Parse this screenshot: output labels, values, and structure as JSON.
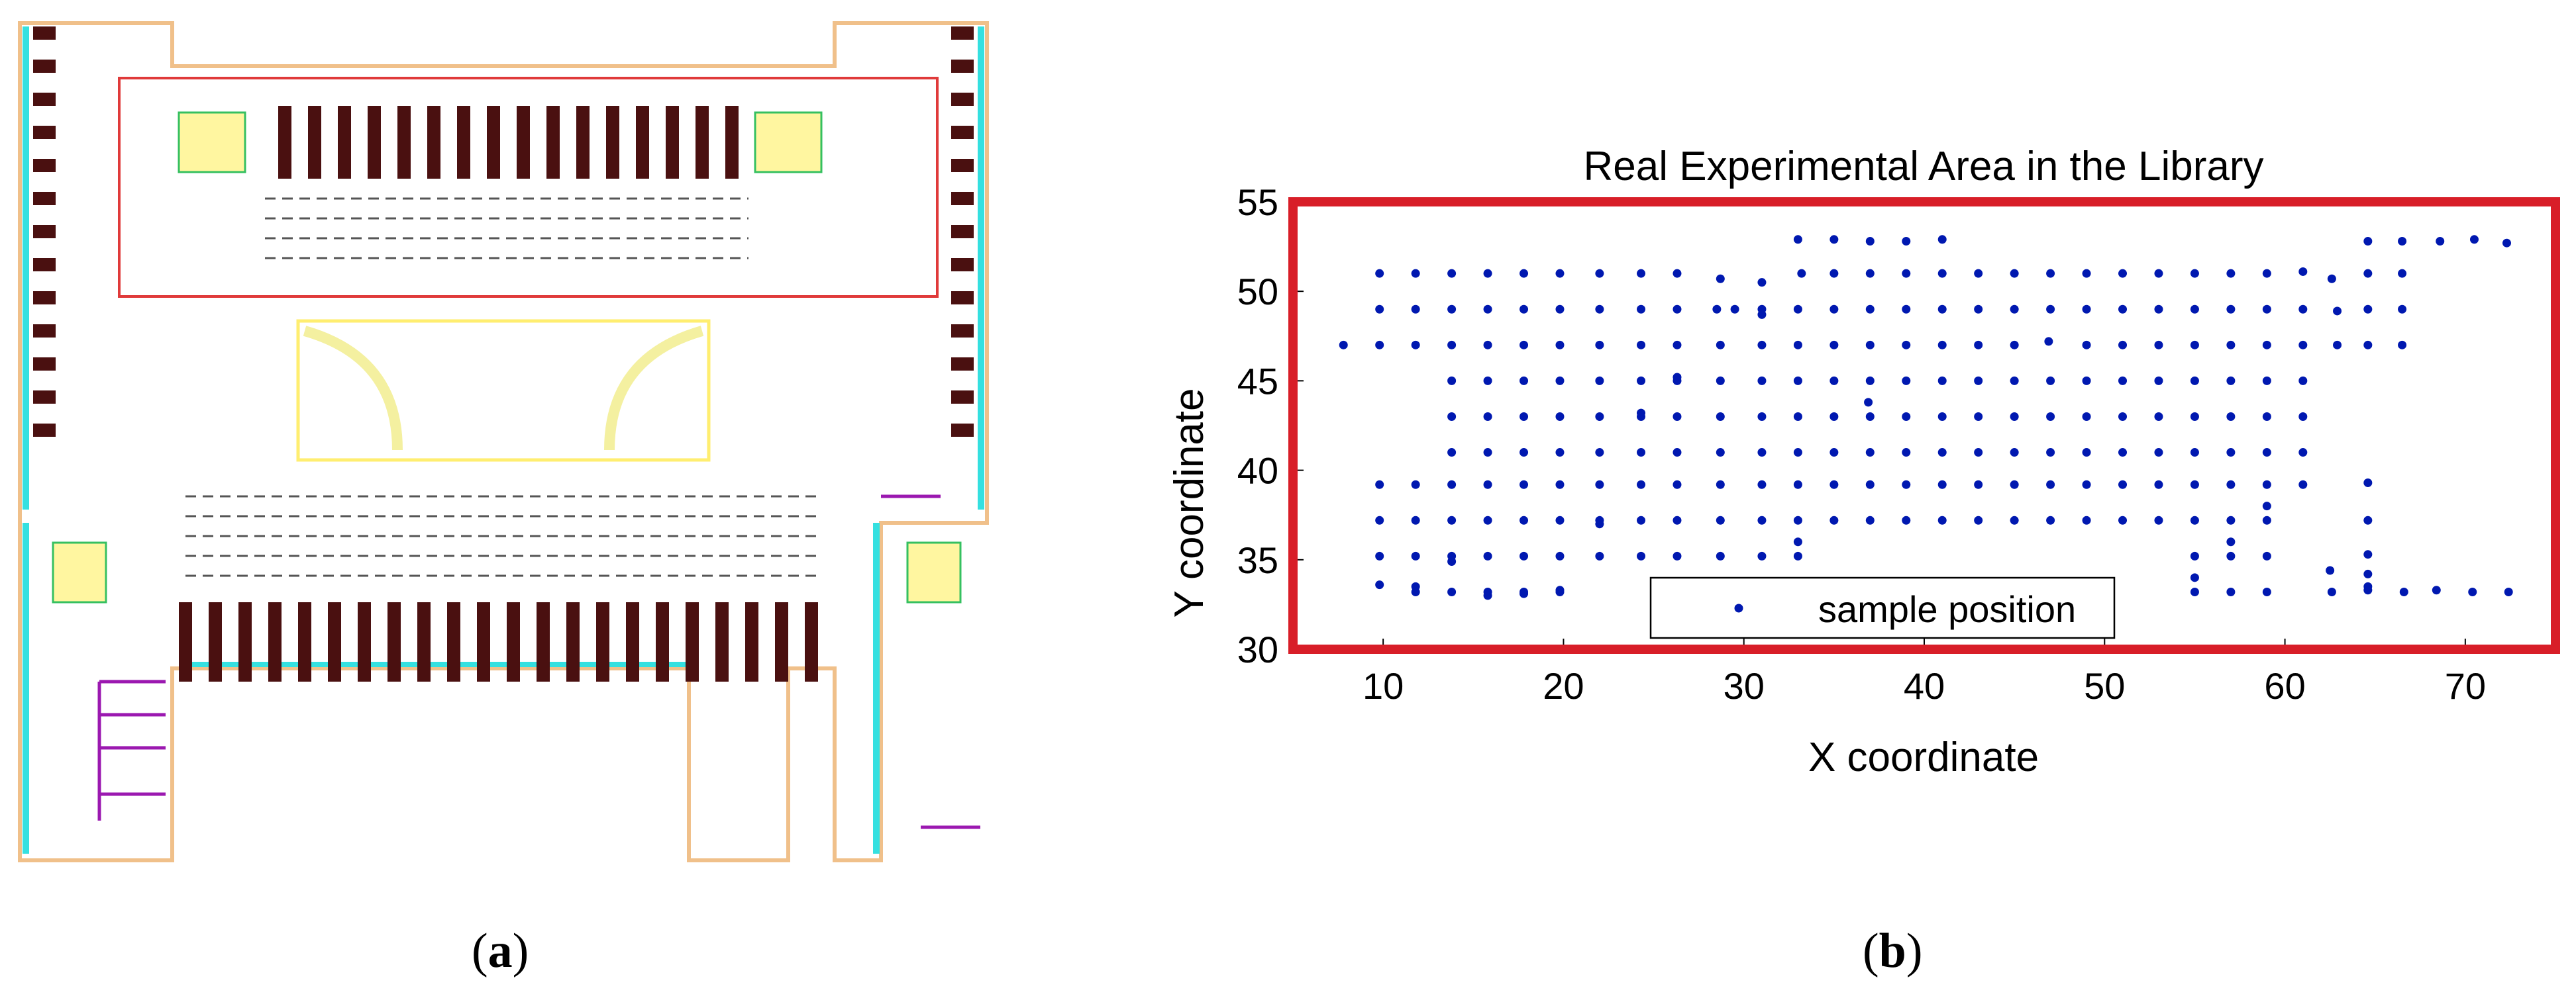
{
  "captions": {
    "a_open": "(",
    "a_letter": "a",
    "a_close": ")",
    "b_open": "(",
    "b_letter": "b",
    "b_close": ")"
  },
  "colors": {
    "highlight_box": "#e03a3a",
    "frame": "#d81e28",
    "points": "#0018b0",
    "bookshelf": "#4a1010",
    "wall": "#f0c08a",
    "window": "#35e0e0",
    "lobby": "#ffee70",
    "partition": "#9b18b0"
  },
  "chart_data": {
    "type": "scatter",
    "title": "Real Experimental Area in the Library",
    "xlabel": "X coordinate",
    "ylabel": "Y coordinate",
    "xlim": [
      5,
      75
    ],
    "ylim": [
      30,
      55
    ],
    "xticks": [
      10,
      20,
      30,
      40,
      50,
      60,
      70
    ],
    "yticks": [
      30,
      35,
      40,
      45,
      50,
      55
    ],
    "legend": "bottom-center",
    "series": [
      {
        "name": "sample position",
        "x": [
          7.8,
          9.8,
          9.8,
          9.8,
          9.8,
          9.8,
          9.8,
          9.8,
          11.8,
          11.8,
          11.8,
          11.8,
          11.8,
          11.8,
          11.8,
          11.8,
          13.8,
          13.8,
          13.8,
          13.8,
          13.8,
          13.8,
          13.8,
          13.8,
          13.8,
          13.8,
          13.8,
          15.8,
          15.8,
          15.8,
          15.8,
          15.8,
          15.8,
          15.8,
          15.8,
          15.8,
          15.8,
          15.8,
          17.8,
          17.8,
          17.8,
          17.8,
          17.8,
          17.8,
          17.8,
          17.8,
          17.8,
          17.8,
          17.8,
          19.8,
          19.8,
          19.8,
          19.8,
          19.8,
          19.8,
          19.8,
          19.8,
          19.8,
          19.8,
          19.8,
          22,
          22,
          22,
          22,
          22,
          22,
          22,
          22,
          22,
          22,
          24.3,
          24.3,
          24.3,
          24.3,
          24.3,
          24.3,
          24.3,
          24.3,
          24.3,
          24.3,
          26.3,
          26.3,
          26.3,
          26.3,
          26.3,
          26.3,
          26.3,
          26.3,
          26.3,
          26.3,
          28.7,
          28.5,
          28.7,
          28.7,
          28.7,
          28.7,
          28.7,
          28.7,
          28.7,
          29.5,
          31,
          31,
          31,
          31,
          31,
          31,
          31,
          31,
          31,
          31,
          33,
          33.2,
          33,
          33,
          33,
          33,
          33,
          33,
          33,
          33,
          33,
          35,
          35,
          35,
          35,
          35,
          35,
          35,
          35,
          35,
          37,
          37,
          37,
          37,
          37,
          37,
          37,
          37,
          37,
          36.9,
          39,
          39,
          39,
          39,
          39,
          39,
          39,
          39,
          39,
          41,
          41,
          41,
          41,
          41,
          41,
          41,
          41,
          41,
          43,
          43,
          43,
          43,
          43,
          43,
          43,
          43,
          45,
          45,
          45,
          45,
          45,
          45,
          45,
          45,
          47,
          46.9,
          47,
          47,
          47,
          47,
          47,
          47,
          49,
          49,
          49,
          49,
          49,
          49,
          49,
          49,
          51,
          51,
          51,
          51,
          51,
          51,
          51,
          51,
          53,
          53,
          53,
          53,
          53,
          53,
          53,
          53,
          55,
          55,
          55,
          55,
          55,
          55,
          55,
          55,
          55,
          55,
          55,
          57,
          57,
          57,
          57,
          57,
          57,
          57,
          57,
          57,
          57,
          57,
          59,
          59,
          59,
          59,
          59,
          59,
          59,
          59,
          59,
          59,
          59,
          61,
          61,
          61,
          61,
          61,
          61,
          61,
          62.6,
          62.9,
          62.9,
          62.5,
          62.6,
          64.6,
          64.6,
          64.6,
          64.6,
          64.6,
          64.6,
          64.6,
          64.6,
          64.6,
          64.6,
          66.5,
          66.5,
          66.5,
          66.5,
          66.6,
          68.6,
          70.5,
          72.3,
          68.4,
          70.4,
          72.4
        ],
        "y": [
          47,
          51,
          49,
          47,
          39.2,
          37.2,
          35.2,
          33.6,
          51,
          49,
          47,
          39.2,
          37.2,
          35.2,
          33.2,
          33.5,
          51,
          49,
          47,
          45,
          43,
          41,
          39.2,
          37.2,
          35.2,
          33.2,
          34.9,
          51,
          49,
          47,
          45,
          43,
          41,
          39.2,
          37.2,
          35.2,
          33.2,
          33.0,
          51,
          49,
          47,
          45,
          43,
          41,
          39.2,
          37.2,
          35.2,
          33.2,
          33.1,
          51,
          49,
          47,
          45,
          43,
          41,
          39.2,
          37.2,
          35.2,
          33.2,
          33.3,
          51,
          49,
          47,
          45,
          43,
          41,
          39.2,
          37.2,
          35.2,
          37,
          51,
          49,
          47,
          45,
          43,
          41,
          39.2,
          37.2,
          35.2,
          43.2,
          51,
          49,
          47,
          45,
          43,
          41,
          39.2,
          37.2,
          35.2,
          45.2,
          50.7,
          49,
          47,
          45,
          43,
          41,
          39.2,
          37.2,
          35.2,
          49,
          50.5,
          49,
          47,
          45,
          43,
          41,
          39.2,
          37.2,
          35.2,
          48.7,
          52.9,
          51,
          49,
          47,
          45,
          43,
          41,
          39.2,
          37.2,
          35.2,
          36,
          52.9,
          51,
          49,
          47,
          45,
          43,
          41,
          39.2,
          37.2,
          52.8,
          51,
          49,
          47,
          45,
          43,
          41,
          39.2,
          37.2,
          43.8,
          52.8,
          51,
          49,
          47,
          45,
          43,
          41,
          39.2,
          37.2,
          52.9,
          51,
          49,
          47,
          45,
          43,
          41,
          39.2,
          37.2,
          51,
          49,
          47,
          45,
          43,
          41,
          39.2,
          37.2,
          51,
          49,
          47,
          45,
          43,
          41,
          39.2,
          37.2,
          51,
          47.2,
          49,
          45,
          43,
          41,
          39.2,
          37.2,
          51,
          49,
          47,
          45,
          43,
          41,
          39.2,
          37.2,
          51,
          49,
          47,
          45,
          43,
          41,
          39.2,
          37.2,
          51,
          49,
          47,
          45,
          43,
          41,
          39.2,
          37.2,
          51,
          49,
          47,
          45,
          43,
          41,
          39.2,
          37.2,
          35.2,
          33.2,
          34,
          51,
          49,
          47,
          45,
          43,
          41,
          39.2,
          37.2,
          35.2,
          33.2,
          36,
          51,
          49,
          47,
          45,
          43,
          41,
          39.2,
          37.2,
          35.2,
          33.2,
          38,
          51.1,
          49,
          47,
          45,
          43,
          41,
          39.2,
          50.7,
          48.9,
          47,
          34.4,
          33.2,
          52.8,
          51,
          49,
          47,
          39.3,
          37.2,
          35.3,
          33.5,
          34.2,
          33.3,
          52.8,
          51,
          49,
          47,
          33.2,
          52.8,
          52.9,
          52.7,
          33.3,
          33.2,
          33.2
        ]
      }
    ]
  }
}
